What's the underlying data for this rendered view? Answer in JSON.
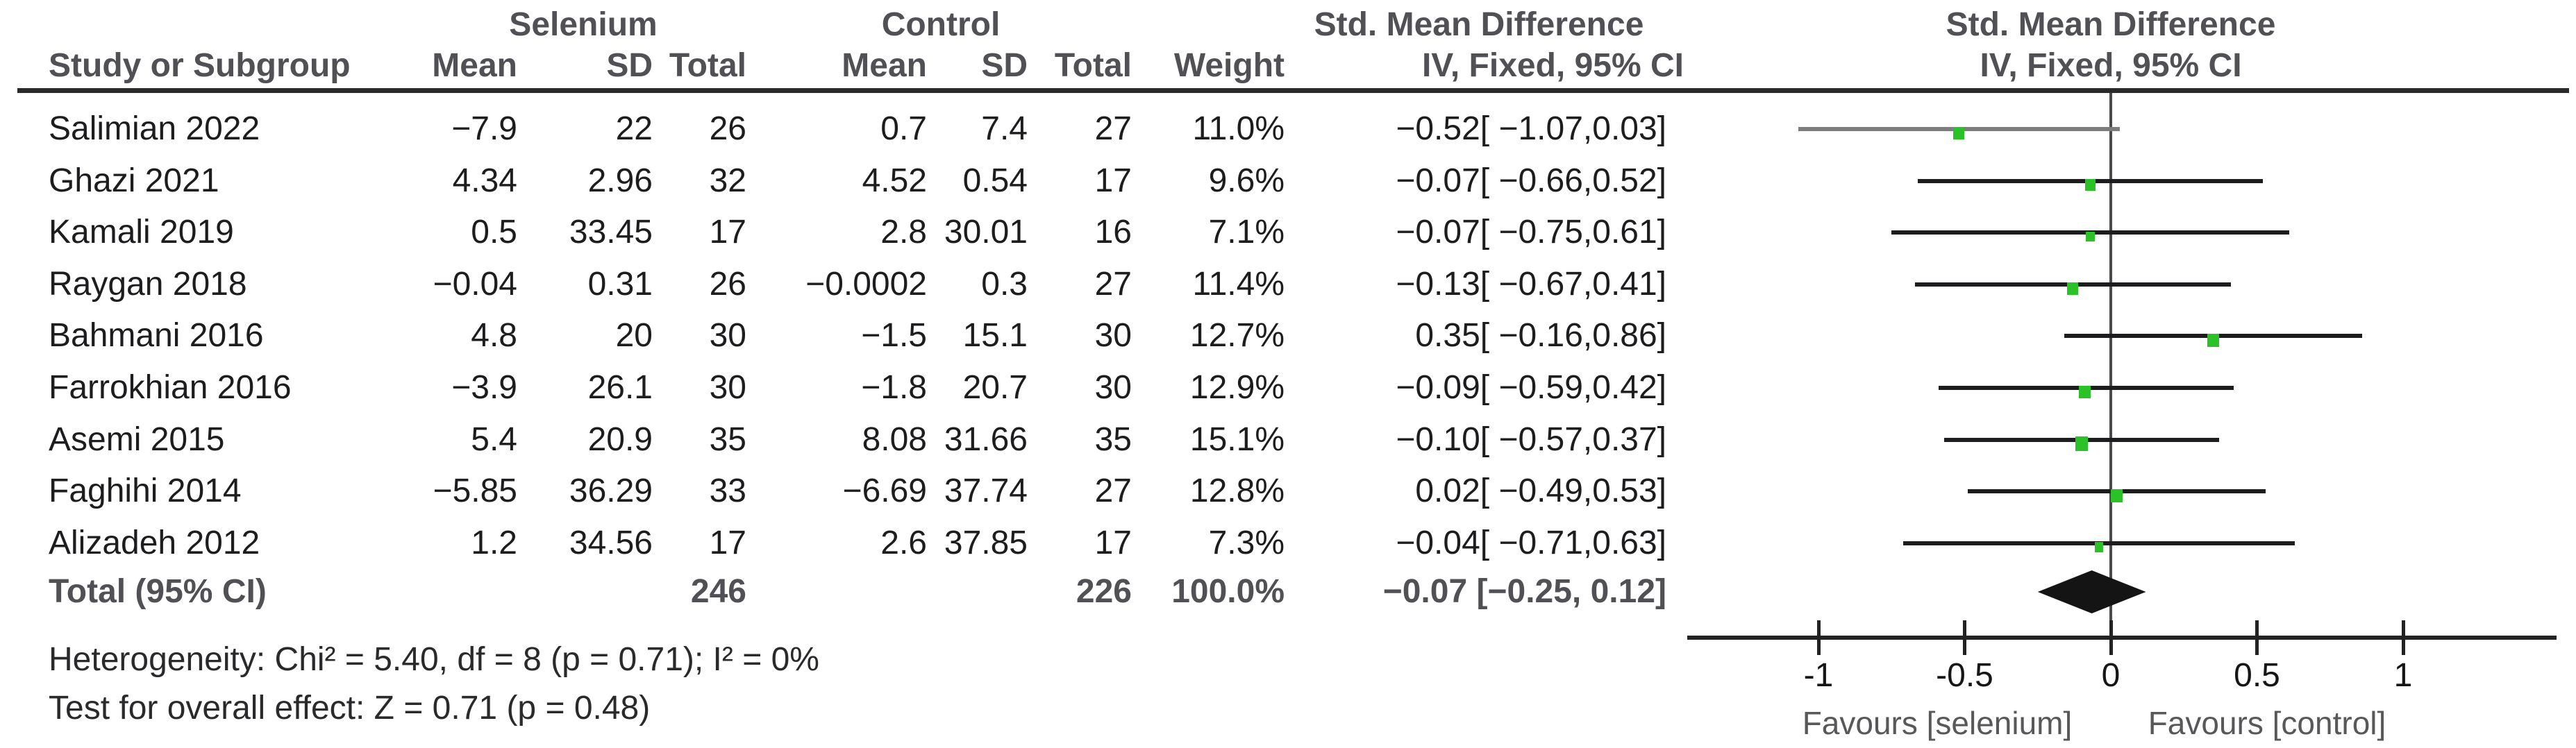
{
  "header": {
    "group1": "Selenium",
    "group2": "Control",
    "effect_title": "Std. Mean Difference",
    "effect_sub": "IV, Fixed, 95% CI",
    "plot_title": "Std. Mean Difference",
    "plot_sub": "IV, Fixed, 95% CI",
    "col_study": "Study or Subgroup",
    "col_mean": "Mean",
    "col_sd": "SD",
    "col_total": "Total",
    "col_weight": "Weight"
  },
  "colors": {
    "marker": "#2bc227",
    "ci_line": "#1d1d1f",
    "diamond": "#141414",
    "header_text": "#515155",
    "data_text": "#1d1d1f"
  },
  "chart_data": {
    "type": "forest",
    "effect_measure": "Std. Mean Difference",
    "method": "IV, Fixed, 95% CI",
    "axis": {
      "ticks": [
        -1,
        -0.5,
        0,
        0.5,
        1
      ],
      "tick_labels": [
        "-1",
        "-0.5",
        "0",
        "0.5",
        "1"
      ],
      "xmin": -1.45,
      "xmax": 1.53,
      "favours_left": "Favours [selenium]",
      "favours_right": "Favours [control]"
    },
    "studies": [
      {
        "study": "Salimian 2022",
        "se_mean": "−7.9",
        "se_sd": "22",
        "se_total": "26",
        "c_mean": "0.7",
        "c_sd": "7.4",
        "c_total": "27",
        "weight": "11.0%",
        "weight_pct": 11.0,
        "ci_text": "−0.52[ −1.07,0.03]",
        "est": -0.52,
        "lo": -1.07,
        "hi": 0.03,
        "line_color": "#7d7d7d"
      },
      {
        "study": "Ghazi 2021",
        "se_mean": "4.34",
        "se_sd": "2.96",
        "se_total": "32",
        "c_mean": "4.52",
        "c_sd": "0.54",
        "c_total": "17",
        "weight": "9.6%",
        "weight_pct": 9.6,
        "ci_text": "−0.07[ −0.66,0.52]",
        "est": -0.07,
        "lo": -0.66,
        "hi": 0.52
      },
      {
        "study": "Kamali 2019",
        "se_mean": "0.5",
        "se_sd": "33.45",
        "se_total": "17",
        "c_mean": "2.8",
        "c_sd": "30.01",
        "c_total": "16",
        "weight": "7.1%",
        "weight_pct": 7.1,
        "ci_text": "−0.07[ −0.75,0.61]",
        "est": -0.07,
        "lo": -0.75,
        "hi": 0.61
      },
      {
        "study": "Raygan 2018",
        "se_mean": "−0.04",
        "se_sd": "0.31",
        "se_total": "26",
        "c_mean": "−0.0002",
        "c_sd": "0.3",
        "c_total": "27",
        "weight": "11.4%",
        "weight_pct": 11.4,
        "ci_text": "−0.13[ −0.67,0.41]",
        "est": -0.13,
        "lo": -0.67,
        "hi": 0.41
      },
      {
        "study": "Bahmani 2016",
        "se_mean": "4.8",
        "se_sd": "20",
        "se_total": "30",
        "c_mean": "−1.5",
        "c_sd": "15.1",
        "c_total": "30",
        "weight": "12.7%",
        "weight_pct": 12.7,
        "ci_text": "0.35[ −0.16,0.86]",
        "est": 0.35,
        "lo": -0.16,
        "hi": 0.86
      },
      {
        "study": "Farrokhian 2016",
        "se_mean": "−3.9",
        "se_sd": "26.1",
        "se_total": "30",
        "c_mean": "−1.8",
        "c_sd": "20.7",
        "c_total": "30",
        "weight": "12.9%",
        "weight_pct": 12.9,
        "ci_text": "−0.09[ −0.59,0.42]",
        "est": -0.09,
        "lo": -0.59,
        "hi": 0.42
      },
      {
        "study": "Asemi 2015",
        "se_mean": "5.4",
        "se_sd": "20.9",
        "se_total": "35",
        "c_mean": "8.08",
        "c_sd": "31.66",
        "c_total": "35",
        "weight": "15.1%",
        "weight_pct": 15.1,
        "ci_text": "−0.10[ −0.57,0.37]",
        "est": -0.1,
        "lo": -0.57,
        "hi": 0.37
      },
      {
        "study": "Faghihi 2014",
        "se_mean": "−5.85",
        "se_sd": "36.29",
        "se_total": "33",
        "c_mean": "−6.69",
        "c_sd": "37.74",
        "c_total": "27",
        "weight": "12.8%",
        "weight_pct": 12.8,
        "ci_text": "0.02[ −0.49,0.53]",
        "est": 0.02,
        "lo": -0.49,
        "hi": 0.53
      },
      {
        "study": "Alizadeh 2012",
        "se_mean": "1.2",
        "se_sd": "34.56",
        "se_total": "17",
        "c_mean": "2.6",
        "c_sd": "37.85",
        "c_total": "17",
        "weight": "7.3%",
        "weight_pct": 7.3,
        "ci_text": "−0.04[ −0.71,0.63]",
        "est": -0.04,
        "lo": -0.71,
        "hi": 0.63
      }
    ],
    "total": {
      "label": "Total (95% CI)",
      "se_total": "246",
      "c_total": "226",
      "weight": "100.0%",
      "ci_text": "−0.07 [−0.25, 0.12]",
      "est": -0.07,
      "lo": -0.25,
      "hi": 0.12
    },
    "footer": {
      "heterogeneity": "Heterogeneity: Chi² = 5.40, df = 8 (p = 0.71); I² = 0%",
      "overall_effect": "Test for overall effect: Z = 0.71 (p = 0.48)"
    }
  }
}
